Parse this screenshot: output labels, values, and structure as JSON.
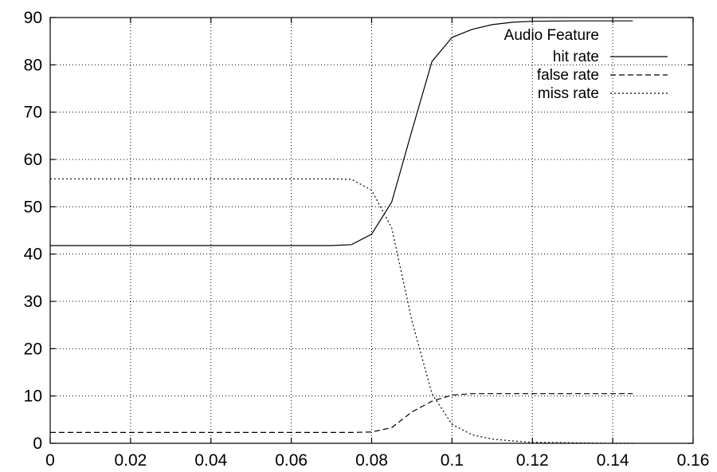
{
  "chart_data": {
    "type": "line",
    "title": "",
    "xlabel": "",
    "ylabel": "",
    "xlim": [
      0,
      0.16
    ],
    "ylim": [
      0,
      90
    ],
    "x_ticks": [
      "0",
      "0.02",
      "0.04",
      "0.06",
      "0.08",
      "0.1",
      "0.12",
      "0.14",
      "0.16"
    ],
    "y_ticks": [
      "0",
      "10",
      "20",
      "30",
      "40",
      "50",
      "60",
      "70",
      "80",
      "90"
    ],
    "grid": true,
    "legend_placement": "top-right",
    "legend_title": "Audio Feature",
    "series": [
      {
        "name": "hit rate",
        "style": "solid",
        "x": [
          0,
          0.07,
          0.075,
          0.08,
          0.085,
          0.09,
          0.095,
          0.1,
          0.105,
          0.11,
          0.115,
          0.12,
          0.13,
          0.14,
          0.145
        ],
        "y": [
          41.8,
          41.8,
          42.0,
          44.2,
          51.0,
          66.0,
          80.7,
          85.8,
          87.5,
          88.5,
          89.0,
          89.2,
          89.3,
          89.3,
          89.3
        ]
      },
      {
        "name": "false rate",
        "style": "dashed",
        "x": [
          0,
          0.075,
          0.08,
          0.085,
          0.09,
          0.095,
          0.1,
          0.105,
          0.11,
          0.12,
          0.13,
          0.14,
          0.145
        ],
        "y": [
          2.3,
          2.3,
          2.4,
          3.3,
          6.6,
          8.9,
          10.2,
          10.5,
          10.5,
          10.5,
          10.5,
          10.5,
          10.5
        ]
      },
      {
        "name": "miss rate",
        "style": "dotted",
        "x": [
          0,
          0.07,
          0.075,
          0.08,
          0.085,
          0.09,
          0.095,
          0.1,
          0.105,
          0.11,
          0.115,
          0.12,
          0.13,
          0.14,
          0.145
        ],
        "y": [
          55.9,
          55.9,
          55.8,
          53.5,
          45.5,
          26.0,
          10.5,
          4.0,
          1.8,
          0.9,
          0.5,
          0.2,
          0.1,
          0.0,
          0.0
        ]
      }
    ]
  }
}
